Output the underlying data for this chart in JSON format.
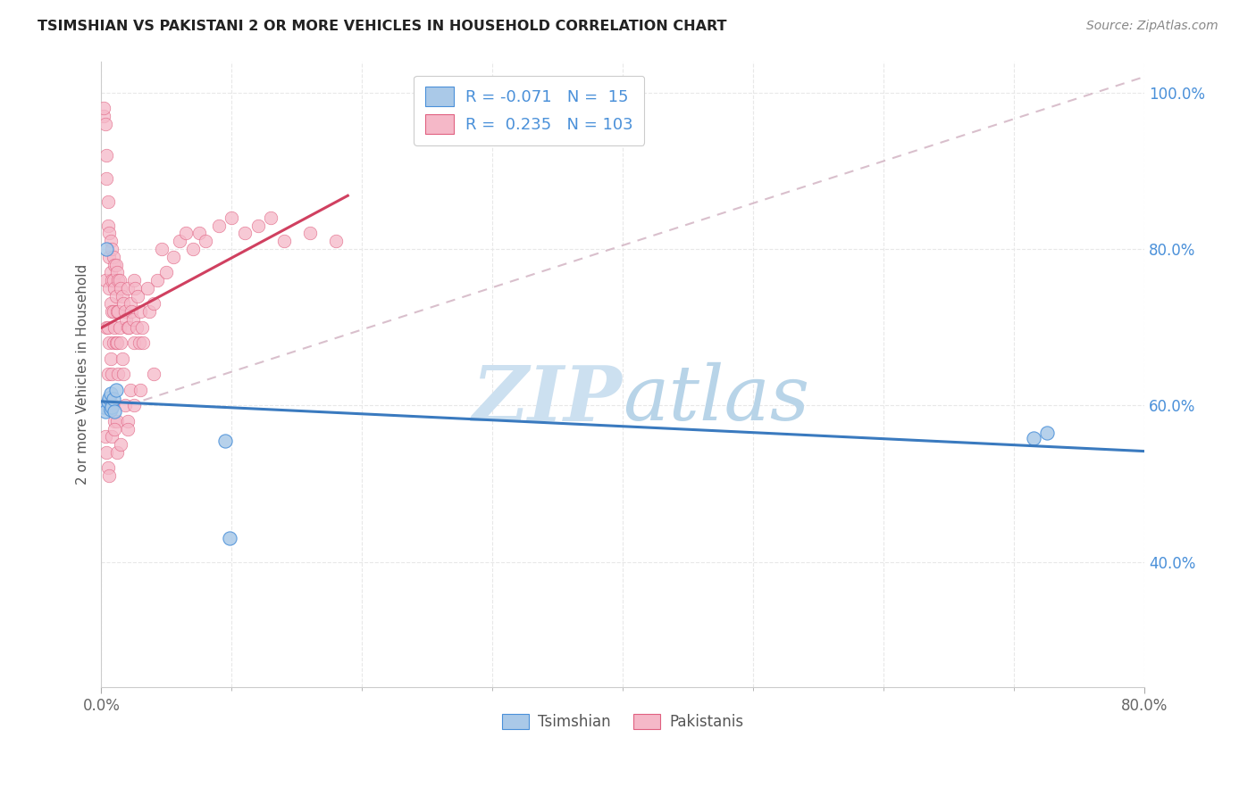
{
  "title": "TSIMSHIAN VS PAKISTANI 2 OR MORE VEHICLES IN HOUSEHOLD CORRELATION CHART",
  "source": "Source: ZipAtlas.com",
  "ylabel": "2 or more Vehicles in Household",
  "xmin": 0.0,
  "xmax": 0.8,
  "ymin": 0.24,
  "ymax": 1.04,
  "r_tsimshian": "-0.071",
  "n_tsimshian": "15",
  "r_pakistani": "0.235",
  "n_pakistani": "103",
  "color_tsimshian_fill": "#aac9e8",
  "color_tsimshian_edge": "#4a90d9",
  "color_pakistani_fill": "#f5b8c8",
  "color_pakistani_edge": "#e06080",
  "color_tsimshian_line": "#3a7abf",
  "color_pakistani_line": "#d04060",
  "color_diag_line": "#d0b0c0",
  "watermark_color": "#cce0f0",
  "background_color": "#ffffff",
  "grid_color": "#e8e8e8",
  "tsimshian_x": [
    0.002,
    0.003,
    0.004,
    0.005,
    0.006,
    0.007,
    0.007,
    0.008,
    0.009,
    0.01,
    0.011,
    0.095,
    0.098,
    0.715,
    0.725
  ],
  "tsimshian_y": [
    0.598,
    0.592,
    0.8,
    0.605,
    0.61,
    0.595,
    0.615,
    0.598,
    0.608,
    0.592,
    0.62,
    0.555,
    0.43,
    0.558,
    0.565
  ],
  "pakistani_x": [
    0.002,
    0.002,
    0.003,
    0.003,
    0.004,
    0.004,
    0.004,
    0.005,
    0.005,
    0.005,
    0.005,
    0.006,
    0.006,
    0.006,
    0.006,
    0.007,
    0.007,
    0.007,
    0.007,
    0.008,
    0.008,
    0.008,
    0.008,
    0.008,
    0.009,
    0.009,
    0.009,
    0.009,
    0.009,
    0.01,
    0.01,
    0.01,
    0.01,
    0.011,
    0.011,
    0.011,
    0.012,
    0.012,
    0.012,
    0.012,
    0.013,
    0.013,
    0.013,
    0.014,
    0.014,
    0.015,
    0.015,
    0.016,
    0.016,
    0.017,
    0.017,
    0.018,
    0.018,
    0.019,
    0.02,
    0.02,
    0.02,
    0.021,
    0.022,
    0.022,
    0.023,
    0.024,
    0.025,
    0.025,
    0.026,
    0.027,
    0.028,
    0.029,
    0.03,
    0.031,
    0.032,
    0.035,
    0.037,
    0.04,
    0.043,
    0.046,
    0.05,
    0.055,
    0.06,
    0.065,
    0.07,
    0.075,
    0.08,
    0.09,
    0.1,
    0.11,
    0.12,
    0.13,
    0.14,
    0.16,
    0.18,
    0.003,
    0.004,
    0.005,
    0.006,
    0.008,
    0.01,
    0.012,
    0.015,
    0.02,
    0.025,
    0.03,
    0.04
  ],
  "pakistani_y": [
    0.97,
    0.98,
    0.76,
    0.96,
    0.92,
    0.89,
    0.7,
    0.86,
    0.83,
    0.64,
    0.7,
    0.82,
    0.79,
    0.75,
    0.68,
    0.81,
    0.77,
    0.73,
    0.66,
    0.8,
    0.76,
    0.72,
    0.64,
    0.6,
    0.79,
    0.76,
    0.72,
    0.68,
    0.6,
    0.78,
    0.75,
    0.7,
    0.58,
    0.78,
    0.74,
    0.68,
    0.77,
    0.72,
    0.68,
    0.58,
    0.76,
    0.72,
    0.64,
    0.76,
    0.7,
    0.75,
    0.68,
    0.74,
    0.66,
    0.73,
    0.64,
    0.72,
    0.6,
    0.71,
    0.75,
    0.7,
    0.58,
    0.7,
    0.73,
    0.62,
    0.72,
    0.71,
    0.76,
    0.68,
    0.75,
    0.7,
    0.74,
    0.68,
    0.72,
    0.7,
    0.68,
    0.75,
    0.72,
    0.73,
    0.76,
    0.8,
    0.77,
    0.79,
    0.81,
    0.82,
    0.8,
    0.82,
    0.81,
    0.83,
    0.84,
    0.82,
    0.83,
    0.84,
    0.81,
    0.82,
    0.81,
    0.56,
    0.54,
    0.52,
    0.51,
    0.56,
    0.57,
    0.54,
    0.55,
    0.57,
    0.6,
    0.62,
    0.64
  ]
}
